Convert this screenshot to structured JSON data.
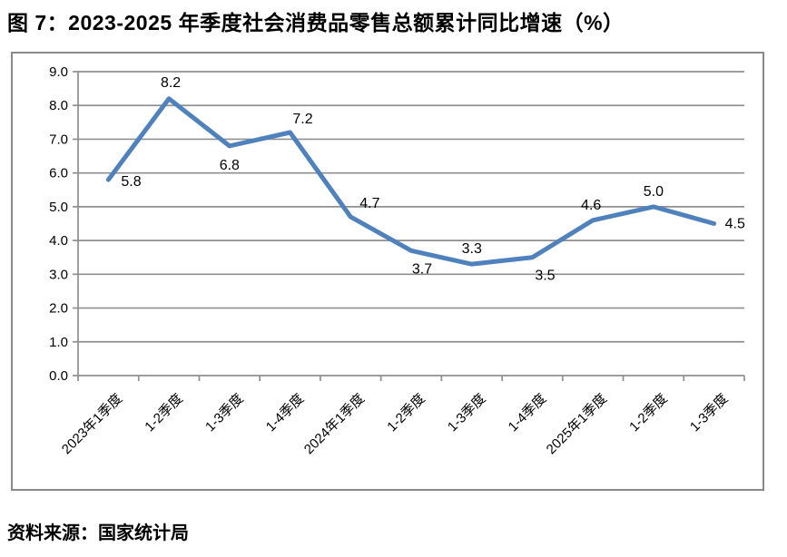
{
  "title": "图 7：2023-2025 年季度社会消费品零售总额累计同比增速（%）",
  "source_note": "资料来源：国家统计局",
  "chart_data": {
    "type": "line",
    "title": "图 7：2023-2025 年季度社会消费品零售总额累计同比增速（%）",
    "categories": [
      "2023年1季度",
      "1-2季度",
      "1-3季度",
      "1-4季度",
      "2024年1季度",
      "1-2季度",
      "1-3季度",
      "1-4季度",
      "2025年1季度",
      "1-2季度",
      "1-3季度"
    ],
    "values": [
      5.8,
      8.2,
      6.8,
      7.2,
      4.7,
      3.7,
      3.3,
      3.5,
      4.6,
      5.0,
      4.5
    ],
    "data_labels": [
      "5.8",
      "8.2",
      "6.8",
      "7.2",
      "4.7",
      "3.7",
      "3.3",
      "3.5",
      "4.6",
      "5.0",
      "4.5"
    ],
    "xlabel": "",
    "ylabel": "",
    "ylim": [
      0,
      9
    ],
    "ytick_step": 1.0,
    "ytick_labels": [
      "0.0",
      "1.0",
      "2.0",
      "3.0",
      "4.0",
      "5.0",
      "6.0",
      "7.0",
      "8.0",
      "9.0"
    ],
    "grid": true,
    "legend": "none",
    "line_color": "#4f81bd",
    "grid_color": "#8f8f8f",
    "axis_color": "#8a8a8a",
    "text_color": "#000000",
    "source": "资料来源：国家统计局"
  }
}
